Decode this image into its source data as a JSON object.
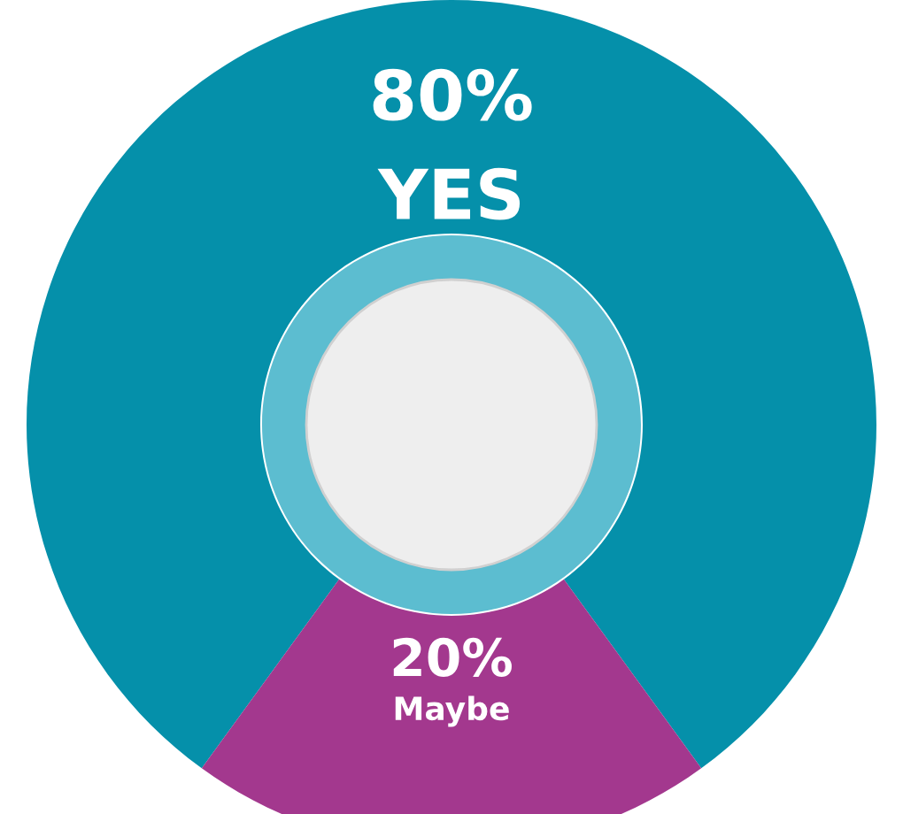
{
  "chart_data": {
    "type": "donut",
    "categories": [
      "YES",
      "Maybe"
    ],
    "values": [
      80,
      20
    ],
    "colors": [
      "#0590aa",
      "#a3388e"
    ],
    "value_labels": [
      "80%",
      "20%"
    ]
  }
}
